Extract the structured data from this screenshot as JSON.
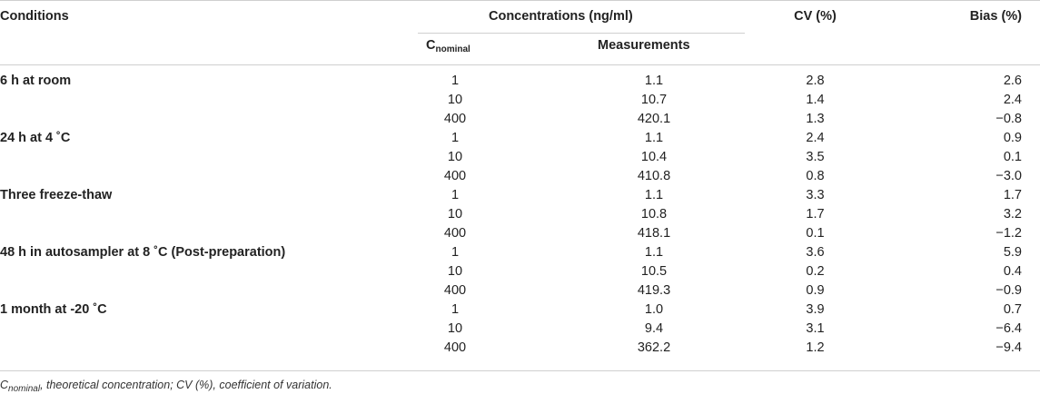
{
  "header": {
    "conditions": "Conditions",
    "concentrations": "Concentrations (ng/ml)",
    "cv": "CV (%)",
    "bias": "Bias (%)",
    "c_main": "C",
    "c_sub": "nominal",
    "measurements": "Measurements"
  },
  "rows": [
    {
      "condition": "6 h at room",
      "nominal": "1",
      "measurement": "1.1",
      "cv": "2.8",
      "bias": "2.6"
    },
    {
      "condition": "",
      "nominal": "10",
      "measurement": "10.7",
      "cv": "1.4",
      "bias": "2.4"
    },
    {
      "condition": "",
      "nominal": "400",
      "measurement": "420.1",
      "cv": "1.3",
      "bias": "−0.8"
    },
    {
      "condition": "24 h at 4 ˚C",
      "nominal": "1",
      "measurement": "1.1",
      "cv": "2.4",
      "bias": "0.9"
    },
    {
      "condition": "",
      "nominal": "10",
      "measurement": "10.4",
      "cv": "3.5",
      "bias": "0.1"
    },
    {
      "condition": "",
      "nominal": "400",
      "measurement": "410.8",
      "cv": "0.8",
      "bias": "−3.0"
    },
    {
      "condition": "Three freeze-thaw",
      "nominal": "1",
      "measurement": "1.1",
      "cv": "3.3",
      "bias": "1.7"
    },
    {
      "condition": "",
      "nominal": "10",
      "measurement": "10.8",
      "cv": "1.7",
      "bias": "3.2"
    },
    {
      "condition": "",
      "nominal": "400",
      "measurement": "418.1",
      "cv": "0.1",
      "bias": "−1.2"
    },
    {
      "condition": "48 h in autosampler at 8 ˚C (Post-preparation)",
      "nominal": "1",
      "measurement": "1.1",
      "cv": "3.6",
      "bias": "5.9"
    },
    {
      "condition": "",
      "nominal": "10",
      "measurement": "10.5",
      "cv": "0.2",
      "bias": "0.4"
    },
    {
      "condition": "",
      "nominal": "400",
      "measurement": "419.3",
      "cv": "0.9",
      "bias": "−0.9"
    },
    {
      "condition": "1 month at -20 ˚C",
      "nominal": "1",
      "measurement": "1.0",
      "cv": "3.9",
      "bias": "0.7"
    },
    {
      "condition": "",
      "nominal": "10",
      "measurement": "9.4",
      "cv": "3.1",
      "bias": "−6.4"
    },
    {
      "condition": "",
      "nominal": "400",
      "measurement": "362.2",
      "cv": "1.2",
      "bias": "−9.4"
    }
  ],
  "footnote": {
    "c_main": "C",
    "c_sub": "nominal",
    "text": ", theoretical concentration; CV (%), coefficient of variation."
  }
}
